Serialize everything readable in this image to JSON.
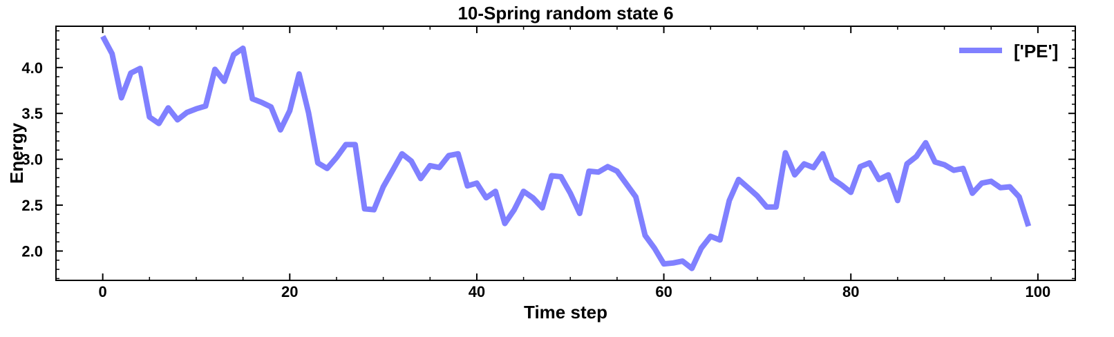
{
  "chart_data": {
    "type": "line",
    "title": "10-Spring random state 6",
    "xlabel": "Time step",
    "ylabel": "Energy",
    "xlim": [
      -5,
      104
    ],
    "ylim": [
      1.68,
      4.45
    ],
    "xticks": [
      0,
      20,
      40,
      60,
      80,
      100
    ],
    "xtick_labels": [
      "0",
      "20",
      "40",
      "60",
      "80",
      "100"
    ],
    "yticks": [
      2.0,
      2.5,
      3.0,
      3.5,
      4.0
    ],
    "ytick_labels": [
      "2.0",
      "2.5",
      "3.0",
      "3.5",
      "4.0"
    ],
    "legend_position": "top-right",
    "grid": false,
    "series": [
      {
        "name": "['PE']",
        "color": "#8080ff",
        "x": [
          0,
          1,
          2,
          3,
          4,
          5,
          6,
          7,
          8,
          9,
          10,
          11,
          12,
          13,
          14,
          15,
          16,
          17,
          18,
          19,
          20,
          21,
          22,
          23,
          24,
          25,
          26,
          27,
          28,
          29,
          30,
          31,
          32,
          33,
          34,
          35,
          36,
          37,
          38,
          39,
          40,
          41,
          42,
          43,
          44,
          45,
          46,
          47,
          48,
          49,
          50,
          51,
          52,
          53,
          54,
          55,
          56,
          57,
          58,
          59,
          60,
          61,
          62,
          63,
          64,
          65,
          66,
          67,
          68,
          69,
          70,
          71,
          72,
          73,
          74,
          75,
          76,
          77,
          78,
          79,
          80,
          81,
          82,
          83,
          84,
          85,
          86,
          87,
          88,
          89,
          90,
          91,
          92,
          93,
          94,
          95,
          96,
          97,
          98,
          99
        ],
        "values": [
          4.34,
          4.15,
          3.67,
          3.94,
          3.99,
          3.46,
          3.39,
          3.56,
          3.43,
          3.51,
          3.55,
          3.58,
          3.98,
          3.85,
          4.14,
          4.21,
          3.66,
          3.62,
          3.57,
          3.32,
          3.53,
          3.93,
          3.51,
          2.96,
          2.9,
          3.02,
          3.16,
          3.16,
          2.46,
          2.45,
          2.7,
          2.88,
          3.06,
          2.98,
          2.79,
          2.93,
          2.91,
          3.04,
          3.06,
          2.71,
          2.74,
          2.58,
          2.65,
          2.3,
          2.45,
          2.65,
          2.58,
          2.47,
          2.82,
          2.81,
          2.63,
          2.41,
          2.87,
          2.86,
          2.92,
          2.87,
          2.73,
          2.59,
          2.17,
          2.03,
          1.86,
          1.87,
          1.89,
          1.81,
          2.03,
          2.16,
          2.12,
          2.55,
          2.78,
          2.69,
          2.6,
          2.48,
          2.48,
          3.07,
          2.83,
          2.95,
          2.91,
          3.06,
          2.79,
          2.72,
          2.64,
          2.92,
          2.96,
          2.78,
          2.83,
          2.55,
          2.95,
          3.03,
          3.18,
          2.97,
          2.94,
          2.88,
          2.9,
          2.63,
          2.74,
          2.76,
          2.69,
          2.7,
          2.59,
          2.27
        ]
      }
    ]
  }
}
